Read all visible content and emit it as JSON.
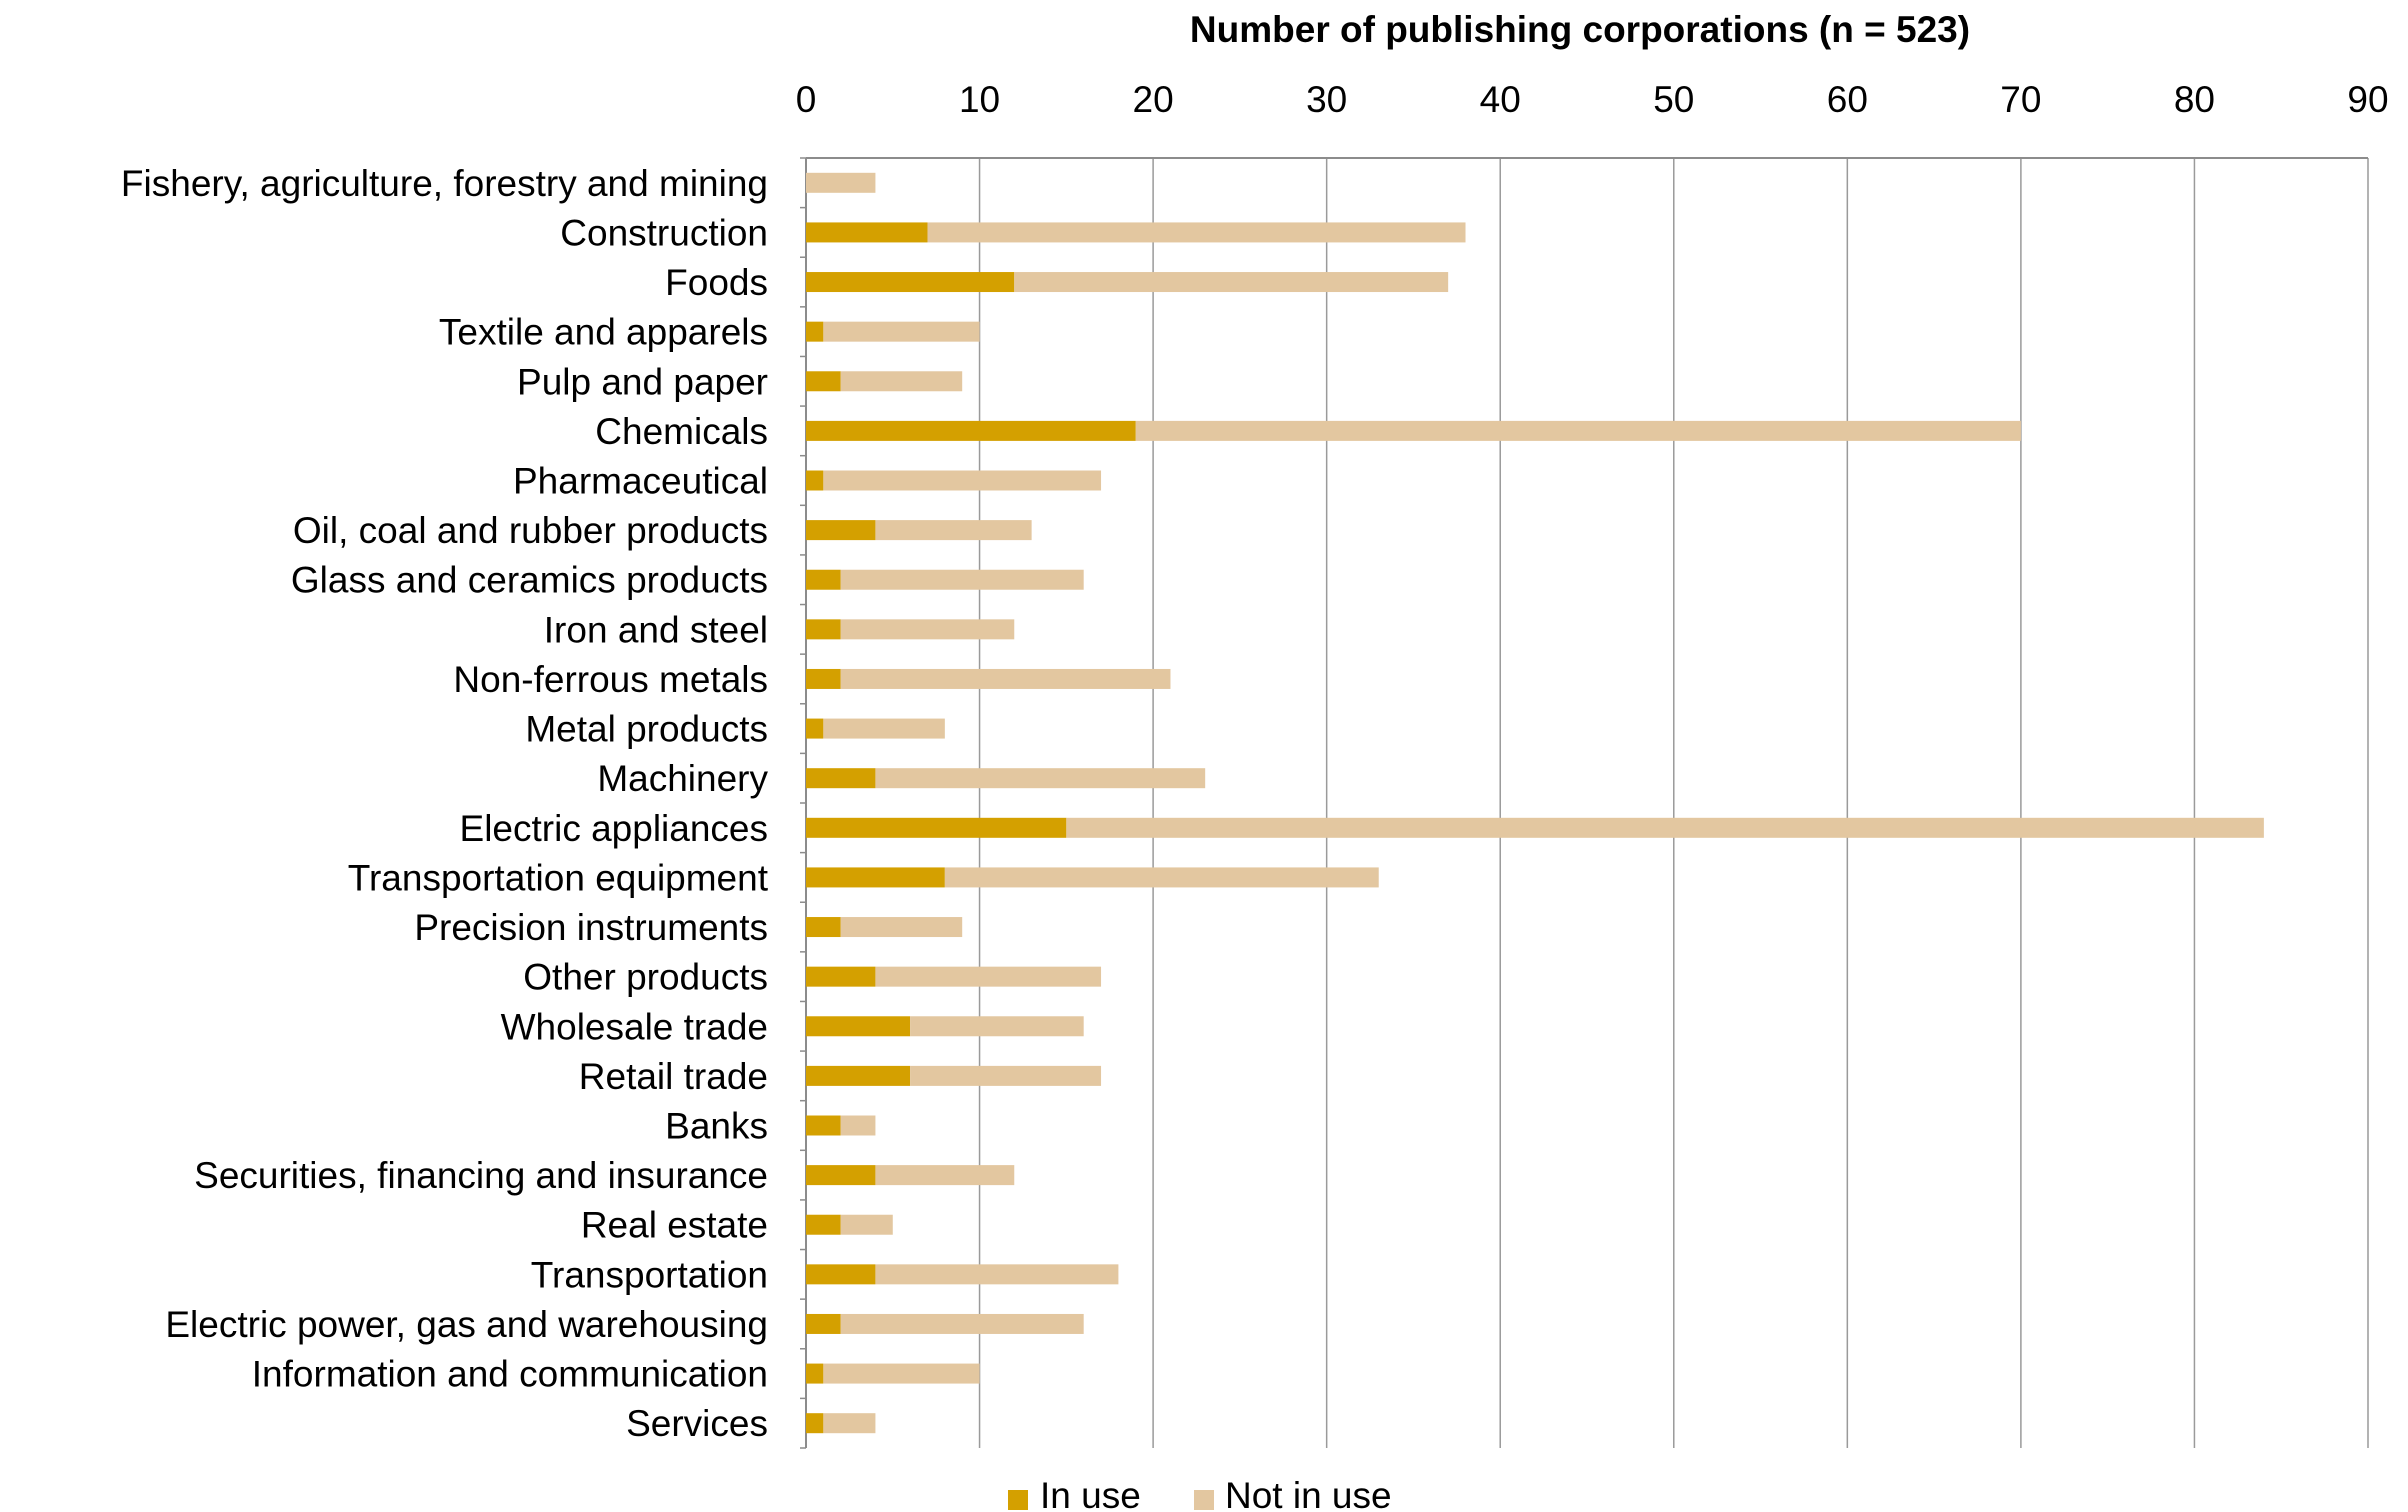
{
  "chart_data": {
    "type": "bar",
    "orientation": "horizontal",
    "stacked": true,
    "title": "Number of publishing corporations (n = 523)",
    "xlabel": "",
    "ylabel": "",
    "xlim": [
      0,
      90
    ],
    "xticks": [
      "0",
      "10",
      "20",
      "30",
      "40",
      "50",
      "60",
      "70",
      "80",
      "90"
    ],
    "xtick_values": [
      0,
      10,
      20,
      30,
      40,
      50,
      60,
      70,
      80,
      90
    ],
    "axis_position": "top",
    "grid": "vertical",
    "legend_position": "bottom-center",
    "categories": [
      "Fishery, agriculture, forestry and mining",
      "Construction",
      "Foods",
      "Textile and apparels",
      "Pulp and paper",
      "Chemicals",
      "Pharmaceutical",
      "Oil, coal and rubber products",
      "Glass and ceramics products",
      "Iron and steel",
      "Non-ferrous metals",
      "Metal products",
      "Machinery",
      "Electric appliances",
      "Transportation equipment",
      "Precision instruments",
      "Other products",
      "Wholesale trade",
      "Retail trade",
      "Banks",
      "Securities, financing and insurance",
      "Real estate",
      "Transportation",
      "Electric power, gas and warehousing",
      "Information and communication",
      "Services"
    ],
    "series": [
      {
        "name": "In use",
        "color": "#D4A000",
        "values": [
          0,
          7,
          12,
          1,
          2,
          19,
          1,
          4,
          2,
          2,
          2,
          1,
          4,
          15,
          8,
          2,
          4,
          6,
          6,
          2,
          4,
          2,
          4,
          2,
          1,
          1
        ]
      },
      {
        "name": "Not in use",
        "color": "#E3C7A0",
        "values": [
          4,
          31,
          25,
          9,
          7,
          51,
          16,
          9,
          14,
          10,
          19,
          7,
          19,
          69,
          25,
          7,
          13,
          10,
          11,
          2,
          8,
          3,
          14,
          14,
          9,
          3
        ]
      }
    ]
  }
}
